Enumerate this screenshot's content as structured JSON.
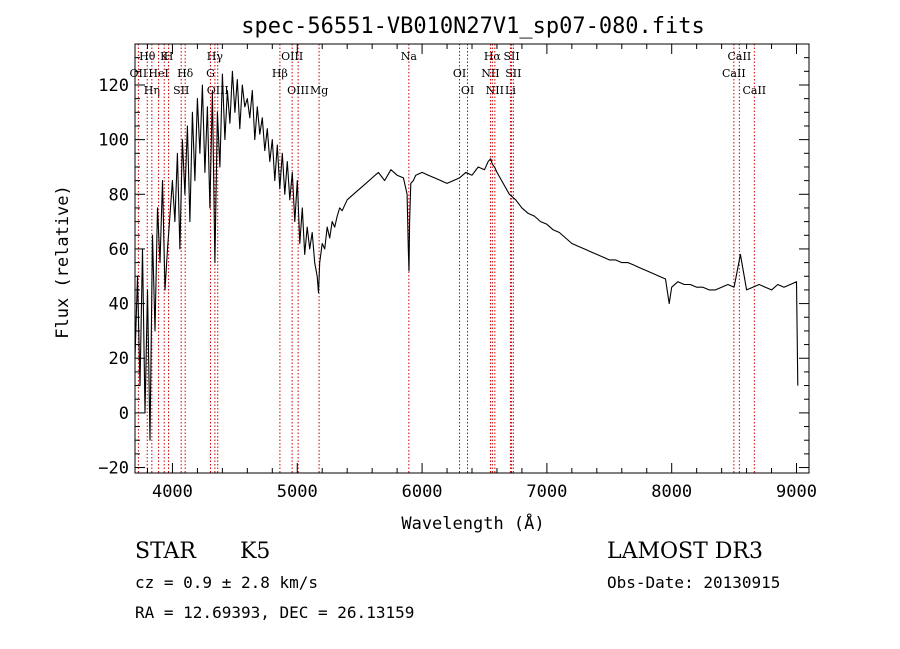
{
  "chart_data": {
    "type": "line",
    "title": "spec-56551-VB010N27V1_sp07-080.fits",
    "xlabel": "Wavelength (Å)",
    "ylabel": "Flux (relative)",
    "xlim": [
      3700,
      9100
    ],
    "ylim": [
      -22,
      135
    ],
    "xticks": [
      4000,
      5000,
      6000,
      7000,
      8000,
      9000
    ],
    "yticks": [
      -20,
      0,
      20,
      40,
      60,
      80,
      100,
      120
    ],
    "series": [
      {
        "name": "flux",
        "x": [
          3700,
          3720,
          3740,
          3760,
          3780,
          3800,
          3820,
          3840,
          3860,
          3880,
          3900,
          3920,
          3940,
          3960,
          3980,
          4000,
          4020,
          4040,
          4060,
          4080,
          4100,
          4120,
          4140,
          4160,
          4180,
          4200,
          4220,
          4240,
          4260,
          4280,
          4300,
          4320,
          4340,
          4360,
          4380,
          4400,
          4420,
          4440,
          4460,
          4480,
          4500,
          4520,
          4540,
          4560,
          4580,
          4600,
          4620,
          4640,
          4660,
          4680,
          4700,
          4720,
          4740,
          4760,
          4780,
          4800,
          4820,
          4840,
          4860,
          4880,
          4900,
          4920,
          4940,
          4960,
          4980,
          5000,
          5020,
          5040,
          5060,
          5080,
          5100,
          5120,
          5140,
          5160,
          5170,
          5180,
          5200,
          5220,
          5240,
          5260,
          5280,
          5300,
          5320,
          5340,
          5360,
          5380,
          5400,
          5450,
          5500,
          5550,
          5600,
          5650,
          5700,
          5750,
          5800,
          5850,
          5880,
          5890,
          5895,
          5900,
          5910,
          5930,
          5950,
          6000,
          6050,
          6100,
          6150,
          6200,
          6250,
          6300,
          6350,
          6400,
          6450,
          6500,
          6530,
          6550,
          6563,
          6580,
          6600,
          6650,
          6700,
          6750,
          6800,
          6850,
          6900,
          6950,
          7000,
          7050,
          7100,
          7150,
          7200,
          7250,
          7300,
          7350,
          7400,
          7450,
          7500,
          7550,
          7600,
          7650,
          7700,
          7750,
          7800,
          7850,
          7900,
          7950,
          7980,
          8000,
          8050,
          8100,
          8150,
          8200,
          8250,
          8300,
          8350,
          8400,
          8450,
          8500,
          8550,
          8600,
          8650,
          8700,
          8750,
          8800,
          8850,
          8900,
          8950,
          9000,
          9010
        ],
        "values": [
          20,
          50,
          10,
          60,
          0,
          45,
          -10,
          65,
          30,
          75,
          55,
          85,
          45,
          60,
          72,
          85,
          70,
          95,
          60,
          100,
          80,
          105,
          70,
          110,
          85,
          115,
          95,
          120,
          88,
          112,
          75,
          118,
          55,
          110,
          90,
          124,
          100,
          118,
          106,
          125,
          110,
          122,
          104,
          120,
          112,
          115,
          108,
          118,
          100,
          112,
          102,
          108,
          96,
          104,
          92,
          100,
          85,
          98,
          82,
          95,
          80,
          92,
          78,
          88,
          70,
          85,
          62,
          75,
          58,
          68,
          60,
          66,
          55,
          50,
          44,
          55,
          62,
          60,
          68,
          64,
          70,
          68,
          72,
          75,
          74,
          76,
          78,
          80,
          82,
          84,
          86,
          88,
          85,
          89,
          87,
          86,
          80,
          60,
          52,
          70,
          84,
          85,
          87,
          88,
          87,
          86,
          85,
          84,
          85,
          86,
          88,
          87,
          90,
          89,
          92,
          93,
          91,
          90,
          88,
          84,
          80,
          78,
          75,
          73,
          72,
          70,
          69,
          67,
          66,
          64,
          62,
          61,
          60,
          59,
          58,
          57,
          56,
          56,
          55,
          55,
          54,
          53,
          52,
          51,
          50,
          49,
          40,
          46,
          48,
          47,
          47,
          46,
          46,
          45,
          45,
          46,
          47,
          46,
          58,
          45,
          46,
          47,
          46,
          45,
          47,
          46,
          47,
          48,
          10
        ]
      }
    ],
    "lines": [
      {
        "name": "Hθ",
        "wavelength": 3798
      },
      {
        "name": "OII",
        "wavelength": 3727
      },
      {
        "name": "Hη",
        "wavelength": 3835
      },
      {
        "name": "K",
        "wavelength": 3934
      },
      {
        "name": "HeI",
        "wavelength": 3889
      },
      {
        "name": "SII",
        "wavelength": 4070
      },
      {
        "name": "H",
        "wavelength": 3969
      },
      {
        "name": "Hδ",
        "wavelength": 4102
      },
      {
        "name": "OIII",
        "wavelength": 4363
      },
      {
        "name": "Hγ",
        "wavelength": 4340
      },
      {
        "name": "G",
        "wavelength": 4305
      },
      {
        "name": "OIII",
        "wavelength": 5007
      },
      {
        "name": "OIII",
        "wavelength": 4959
      },
      {
        "name": "Hβ",
        "wavelength": 4861
      },
      {
        "name": "Mg",
        "wavelength": 5175
      },
      {
        "name": "Na",
        "wavelength": 5894
      },
      {
        "name": "OI",
        "wavelength": 6300
      },
      {
        "name": "OI",
        "wavelength": 6364
      },
      {
        "name": "Hα",
        "wavelength": 6563
      },
      {
        "name": "NII",
        "wavelength": 6548
      },
      {
        "name": "NII",
        "wavelength": 6583
      },
      {
        "name": "SII",
        "wavelength": 6717
      },
      {
        "name": "SII",
        "wavelength": 6731
      },
      {
        "name": "Li",
        "wavelength": 6708
      },
      {
        "name": "CaII",
        "wavelength": 8542
      },
      {
        "name": "CaII",
        "wavelength": 8498
      },
      {
        "name": "CaII",
        "wavelength": 8662
      }
    ]
  },
  "info": {
    "class": "STAR",
    "subclass": "K5",
    "survey": "LAMOST DR3",
    "cz": "cz = 0.9 ± 2.8 km/s",
    "obs_date": "Obs-Date: 20130915",
    "coords": "RA =  12.69393, DEC =  26.13159"
  },
  "colors": {
    "line": "#cc0000",
    "spectrum": "#000000",
    "axis": "#000000"
  }
}
